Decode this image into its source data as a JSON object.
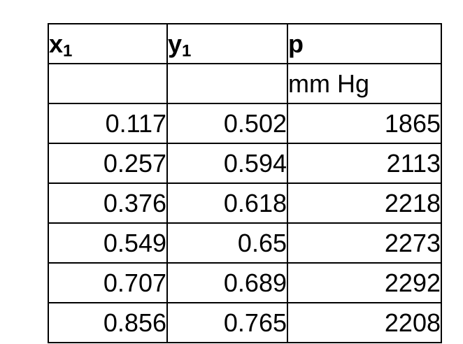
{
  "table": {
    "headers": [
      {
        "base": "x",
        "sub": "1"
      },
      {
        "base": "y",
        "sub": "1"
      },
      {
        "base": "p",
        "sub": ""
      }
    ],
    "units": [
      "",
      "",
      "mm Hg"
    ],
    "rows": [
      [
        "0.117",
        "0.502",
        "1865"
      ],
      [
        "0.257",
        "0.594",
        "2113"
      ],
      [
        "0.376",
        "0.618",
        "2218"
      ],
      [
        "0.549",
        "0.65",
        "2273"
      ],
      [
        "0.707",
        "0.689",
        "2292"
      ],
      [
        "0.856",
        "0.765",
        "2208"
      ]
    ]
  },
  "colors": {
    "background": "#ffffff",
    "grid_line": "#000000",
    "text": "#000000"
  },
  "chart_data": {
    "type": "table",
    "columns": [
      "x1",
      "y1",
      "p (mm Hg)"
    ],
    "rows": [
      [
        0.117,
        0.502,
        1865
      ],
      [
        0.257,
        0.594,
        2113
      ],
      [
        0.376,
        0.618,
        2218
      ],
      [
        0.549,
        0.65,
        2273
      ],
      [
        0.707,
        0.689,
        2292
      ],
      [
        0.856,
        0.765,
        2208
      ]
    ],
    "title": "",
    "notes_units_row": [
      "",
      "",
      "mm Hg"
    ]
  }
}
